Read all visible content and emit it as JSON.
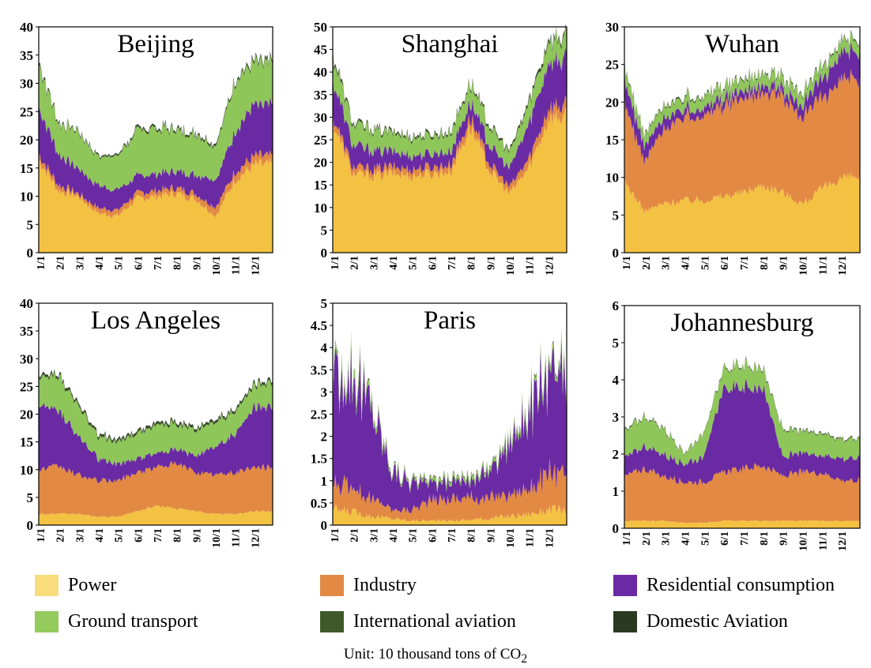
{
  "chart_data": [
    {
      "type": "area",
      "stacked": true,
      "title": "Beijing",
      "categories": [
        "1/1",
        "2/1",
        "3/1",
        "4/1",
        "5/1",
        "6/1",
        "7/1",
        "8/1",
        "9/1",
        "10/1",
        "11/1",
        "12/1"
      ],
      "ylim": [
        0,
        40
      ],
      "yticks": [
        "0",
        "5",
        "10",
        "15",
        "20",
        "25",
        "30",
        "35",
        "40"
      ],
      "series": [
        {
          "name": "Power",
          "values": [
            16.5,
            11,
            10,
            7,
            6.5,
            9.5,
            10,
            10.5,
            9.5,
            6.5,
            13,
            15.5
          ]
        },
        {
          "name": "Industry",
          "values": [
            1,
            1,
            0.5,
            1,
            1,
            1,
            1,
            1,
            1,
            1.5,
            1.5,
            1.5
          ]
        },
        {
          "name": "Residential consumption",
          "values": [
            8.5,
            5.5,
            4.5,
            4,
            3.5,
            3,
            3,
            3,
            3.5,
            5,
            7,
            9
          ]
        },
        {
          "name": "Ground transport",
          "values": [
            7.5,
            5.5,
            6.5,
            5,
            6,
            8,
            8,
            7.5,
            7,
            6,
            8.5,
            7.5
          ]
        },
        {
          "name": "International aviation",
          "values": [
            0.3,
            0.2,
            0.2,
            0.2,
            0.2,
            0.2,
            0.2,
            0.2,
            0.2,
            0.2,
            0.2,
            0.3
          ]
        },
        {
          "name": "Domestic Aviation",
          "values": [
            0.2,
            0.1,
            0.1,
            0.1,
            0.1,
            0.2,
            0.2,
            0.2,
            0.2,
            0.2,
            0.2,
            0.2
          ]
        }
      ]
    },
    {
      "type": "area",
      "stacked": true,
      "title": "Shanghai",
      "categories": [
        "1/1",
        "2/1",
        "3/1",
        "4/1",
        "5/1",
        "6/1",
        "7/1",
        "8/1",
        "9/1",
        "10/1",
        "11/1",
        "12/1"
      ],
      "ylim": [
        0,
        50
      ],
      "yticks": [
        "0",
        "5",
        "10",
        "15",
        "20",
        "25",
        "30",
        "35",
        "40",
        "45",
        "50"
      ],
      "series": [
        {
          "name": "Power",
          "values": [
            29,
            17.5,
            17,
            17.5,
            17,
            17.5,
            18,
            28,
            18,
            13,
            19,
            30
          ]
        },
        {
          "name": "Industry",
          "values": [
            1.5,
            1.5,
            1.5,
            1.5,
            1.5,
            1.5,
            1.5,
            2,
            1.5,
            1.5,
            2,
            2.5
          ]
        },
        {
          "name": "Residential consumption",
          "values": [
            8,
            5,
            4,
            3.5,
            3,
            3,
            3,
            3.5,
            4,
            4,
            8,
            10
          ]
        },
        {
          "name": "Ground transport",
          "values": [
            5,
            4.5,
            4.5,
            4,
            4,
            4,
            4,
            4,
            4,
            3.5,
            4.5,
            4.5
          ]
        },
        {
          "name": "International aviation",
          "values": [
            0.5,
            0.3,
            0.3,
            0.3,
            0.3,
            0.3,
            0.3,
            0.3,
            0.3,
            0.3,
            0.4,
            0.5
          ]
        },
        {
          "name": "Domestic Aviation",
          "values": [
            0.3,
            0.2,
            0.2,
            0.2,
            0.2,
            0.2,
            0.2,
            0.2,
            0.2,
            0.2,
            0.3,
            0.3
          ]
        }
      ]
    },
    {
      "type": "area",
      "stacked": true,
      "title": "Wuhan",
      "categories": [
        "1/1",
        "2/1",
        "3/1",
        "4/1",
        "5/1",
        "6/1",
        "7/1",
        "8/1",
        "9/1",
        "10/1",
        "11/1",
        "12/1"
      ],
      "ylim": [
        0,
        30
      ],
      "yticks": [
        "0",
        "5",
        "10",
        "15",
        "20",
        "25",
        "30"
      ],
      "series": [
        {
          "name": "Power",
          "values": [
            9.5,
            5.5,
            6.5,
            7,
            7,
            7.5,
            8,
            9,
            8,
            6.5,
            8.5,
            10
          ]
        },
        {
          "name": "Industry",
          "values": [
            10.5,
            6.5,
            10,
            11,
            11.5,
            12,
            12.5,
            12.5,
            13,
            11.5,
            12,
            13
          ]
        },
        {
          "name": "Residential consumption",
          "values": [
            3,
            2,
            1.5,
            1,
            1,
            1,
            1,
            1,
            1,
            1.5,
            2.5,
            3.5
          ]
        },
        {
          "name": "Ground transport",
          "values": [
            1.5,
            1.5,
            1.5,
            1.5,
            1.5,
            1.5,
            1.5,
            1.5,
            1.5,
            1.5,
            1.5,
            1.5
          ]
        },
        {
          "name": "International aviation",
          "values": [
            0.1,
            0.1,
            0.1,
            0.1,
            0.1,
            0.1,
            0.1,
            0.1,
            0.1,
            0.1,
            0.1,
            0.1
          ]
        },
        {
          "name": "Domestic Aviation",
          "values": [
            0.1,
            0.05,
            0.1,
            0.1,
            0.1,
            0.1,
            0.1,
            0.1,
            0.1,
            0.1,
            0.1,
            0.1
          ]
        }
      ]
    },
    {
      "type": "area",
      "stacked": true,
      "title": "Los Angeles",
      "categories": [
        "1/1",
        "2/1",
        "3/1",
        "4/1",
        "5/1",
        "6/1",
        "7/1",
        "8/1",
        "9/1",
        "10/1",
        "11/1",
        "12/1"
      ],
      "ylim": [
        0,
        40
      ],
      "yticks": [
        "0",
        "5",
        "10",
        "15",
        "20",
        "25",
        "30",
        "35",
        "40"
      ],
      "series": [
        {
          "name": "Power",
          "values": [
            2,
            2,
            2,
            1.5,
            1.5,
            2.5,
            3.5,
            3,
            2.5,
            2,
            2,
            2.5
          ]
        },
        {
          "name": "Industry",
          "values": [
            8,
            8.5,
            7,
            6.5,
            6.5,
            7,
            7,
            8,
            7,
            7,
            7.5,
            8
          ]
        },
        {
          "name": "Residential consumption",
          "values": [
            11,
            10,
            7,
            4,
            3,
            2.5,
            2.5,
            2.5,
            3,
            5,
            7,
            11
          ]
        },
        {
          "name": "Ground transport",
          "values": [
            5,
            6,
            5.5,
            4,
            4,
            4.5,
            5,
            4.5,
            4.5,
            4.5,
            4,
            4
          ]
        },
        {
          "name": "International aviation",
          "values": [
            0.3,
            0.3,
            0.3,
            0.3,
            0.3,
            0.3,
            0.3,
            0.3,
            0.3,
            0.3,
            0.3,
            0.3
          ]
        },
        {
          "name": "Domestic Aviation",
          "values": [
            0.2,
            0.2,
            0.2,
            0.2,
            0.2,
            0.2,
            0.2,
            0.2,
            0.2,
            0.2,
            0.2,
            0.2
          ]
        }
      ]
    },
    {
      "type": "area",
      "stacked": true,
      "title": "Paris",
      "categories": [
        "1/1",
        "2/1",
        "3/1",
        "4/1",
        "5/1",
        "6/1",
        "7/1",
        "8/1",
        "9/1",
        "10/1",
        "11/1",
        "12/1"
      ],
      "ylim": [
        0,
        5
      ],
      "yticks": [
        "0",
        "0.5",
        "1",
        "1.5",
        "2",
        "2.5",
        "3",
        "3.5",
        "4",
        "4.5",
        "5"
      ],
      "series": [
        {
          "name": "Power",
          "values": [
            0.35,
            0.3,
            0.2,
            0.15,
            0.1,
            0.1,
            0.1,
            0.12,
            0.15,
            0.2,
            0.25,
            0.35
          ]
        },
        {
          "name": "Industry",
          "values": [
            0.5,
            0.6,
            0.4,
            0.2,
            0.25,
            0.45,
            0.5,
            0.5,
            0.45,
            0.5,
            0.6,
            0.8
          ]
        },
        {
          "name": "Residential consumption",
          "values": [
            2.2,
            2.7,
            2,
            0.9,
            0.6,
            0.4,
            0.4,
            0.4,
            0.6,
            1.2,
            1.8,
            2.2
          ]
        },
        {
          "name": "Ground transport",
          "values": [
            0.15,
            0.15,
            0.1,
            0.05,
            0.05,
            0.08,
            0.08,
            0.08,
            0.08,
            0.1,
            0.1,
            0.12
          ]
        },
        {
          "name": "International aviation",
          "values": [
            0.02,
            0.02,
            0.02,
            0.01,
            0.01,
            0.01,
            0.01,
            0.01,
            0.01,
            0.02,
            0.02,
            0.02
          ]
        },
        {
          "name": "Domestic Aviation",
          "values": [
            0.01,
            0.01,
            0.01,
            0.01,
            0.01,
            0.01,
            0.01,
            0.01,
            0.01,
            0.01,
            0.01,
            0.01
          ]
        }
      ]
    },
    {
      "type": "area",
      "stacked": true,
      "title": "Johannesburg",
      "categories": [
        "1/1",
        "2/1",
        "3/1",
        "4/1",
        "5/1",
        "6/1",
        "7/1",
        "8/1",
        "9/1",
        "10/1",
        "11/1",
        "12/1"
      ],
      "ylim": [
        0,
        6
      ],
      "yticks": [
        "0",
        "1",
        "2",
        "3",
        "4",
        "5",
        "6"
      ],
      "series": [
        {
          "name": "Power",
          "values": [
            0.2,
            0.2,
            0.2,
            0.15,
            0.15,
            0.2,
            0.2,
            0.2,
            0.2,
            0.2,
            0.2,
            0.2
          ]
        },
        {
          "name": "Industry",
          "values": [
            1.2,
            1.4,
            1.2,
            1.1,
            1.1,
            1.3,
            1.4,
            1.5,
            1.2,
            1.3,
            1.3,
            1.1
          ]
        },
        {
          "name": "Residential consumption",
          "values": [
            0.5,
            0.6,
            0.6,
            0.5,
            0.7,
            2.2,
            2.2,
            2.1,
            0.5,
            0.5,
            0.5,
            0.6
          ]
        },
        {
          "name": "Ground transport",
          "values": [
            0.7,
            0.8,
            0.7,
            0.3,
            0.6,
            0.5,
            0.6,
            0.5,
            0.7,
            0.6,
            0.6,
            0.5
          ]
        },
        {
          "name": "International aviation",
          "values": [
            0.02,
            0.02,
            0.02,
            0.01,
            0.01,
            0.02,
            0.02,
            0.02,
            0.02,
            0.02,
            0.02,
            0.02
          ]
        },
        {
          "name": "Domestic Aviation",
          "values": [
            0.01,
            0.01,
            0.01,
            0.01,
            0.01,
            0.01,
            0.01,
            0.01,
            0.01,
            0.01,
            0.01,
            0.01
          ]
        }
      ]
    }
  ],
  "legend": {
    "items": [
      {
        "label": "Power",
        "color": "#f9dd7c"
      },
      {
        "label": "Industry",
        "color": "#e28a44"
      },
      {
        "label": "Residential consumption",
        "color": "#6a2aa3"
      },
      {
        "label": "Ground transport",
        "color": "#95ca5c"
      },
      {
        "label": "International aviation",
        "color": "#3e5a2a"
      },
      {
        "label": "Domestic Aviation",
        "color": "#2a3a20"
      }
    ]
  },
  "fill_colors": [
    "#f4c242",
    "#e28a44",
    "#6a2aa3",
    "#8fc65a",
    "#3e5a2a",
    "#1f2b16"
  ],
  "unit_note": {
    "prefix": "Unit: 10 thousand tons of CO",
    "subscript": "2"
  }
}
